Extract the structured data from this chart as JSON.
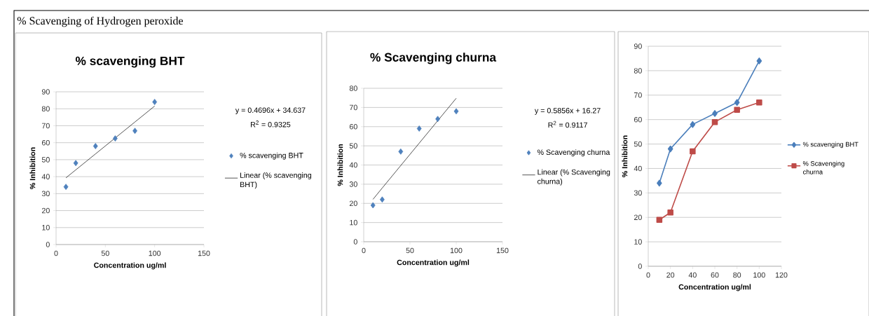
{
  "chart_data": [
    {
      "type": "other",
      "title": "% Scavenging of Hydrogen peroxide"
    },
    {
      "type": "scatter",
      "title": "% scavenging BHT",
      "xlabel": "Concentration ug/ml",
      "ylabel": "% Inhibition",
      "x": [
        10,
        20,
        40,
        60,
        80,
        100
      ],
      "xlim": [
        0,
        150
      ],
      "xticks": [
        0,
        50,
        100,
        150
      ],
      "ylim": [
        0,
        90
      ],
      "yticks": [
        0,
        10,
        20,
        30,
        40,
        50,
        60,
        70,
        80,
        90
      ],
      "grid": "y",
      "legend": "right",
      "marker": "diamond",
      "annotations": [
        "y = 0.4696x + 34.637",
        "R$^{2}$ = 0.9325"
      ],
      "series": [
        {
          "name": "% scavenging BHT",
          "color": "#4f81bd",
          "values": [
            34,
            48,
            58,
            62.5,
            67,
            84
          ]
        },
        {
          "name": "Linear (% scavenging BHT)",
          "type": "line",
          "marker": "none",
          "color": "#000000",
          "values": [
            39.3,
            44.0,
            53.4,
            62.8,
            72.2,
            81.6
          ]
        }
      ]
    },
    {
      "type": "scatter",
      "title": "% Scavenging churna",
      "xlabel": "Concentration ug/ml",
      "ylabel": "% Inhibition",
      "x": [
        10,
        20,
        40,
        60,
        80,
        100
      ],
      "xlim": [
        0,
        150
      ],
      "xticks": [
        0,
        50,
        100,
        150
      ],
      "ylim": [
        0,
        80
      ],
      "yticks": [
        0,
        10,
        20,
        30,
        40,
        50,
        60,
        70,
        80
      ],
      "grid": "y",
      "legend": "right",
      "marker": "diamond",
      "annotations": [
        "y = 0.5856x + 16.27",
        "R$^{2}$ = 0.9117"
      ],
      "series": [
        {
          "name": "% Scavenging churna",
          "color": "#4f81bd",
          "values": [
            19,
            22,
            47,
            59,
            64,
            68
          ]
        },
        {
          "name": "Linear (% Scavenging churna)",
          "type": "line",
          "marker": "none",
          "color": "#000000",
          "values": [
            22.1,
            28.0,
            39.7,
            51.4,
            63.1,
            74.8
          ]
        }
      ]
    },
    {
      "type": "line",
      "xlabel": "Concentration ug/ml",
      "ylabel": "% Inhibition",
      "x": [
        10,
        20,
        40,
        60,
        80,
        100
      ],
      "xlim": [
        0,
        120
      ],
      "xticks": [
        0,
        20,
        40,
        60,
        80,
        100,
        120
      ],
      "ylim": [
        0,
        90
      ],
      "yticks": [
        0,
        10,
        20,
        30,
        40,
        50,
        60,
        70,
        80,
        90
      ],
      "grid": "y",
      "legend": "right",
      "series": [
        {
          "name": "% scavenging BHT",
          "color": "#4a7ebb",
          "marker": "diamond",
          "values": [
            34,
            48,
            58,
            62.5,
            67,
            84
          ]
        },
        {
          "name": "% Scavenging churna",
          "color": "#be4b48",
          "marker": "square",
          "values": [
            19,
            22,
            47,
            59,
            64,
            67
          ]
        }
      ]
    }
  ]
}
